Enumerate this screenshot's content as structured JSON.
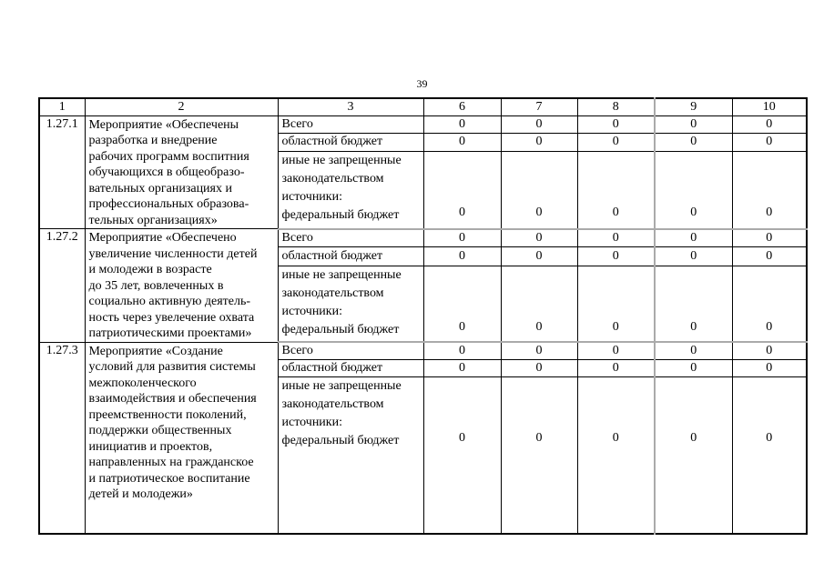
{
  "page": {
    "number": "39"
  },
  "colors": {
    "grid": "#000000",
    "divider": "#aaaaaa"
  },
  "table": {
    "header": [
      "1",
      "2",
      "3",
      "6",
      "7",
      "8",
      "9",
      "10"
    ],
    "divider_before_column": "9",
    "groups": [
      {
        "id": "1.27.1",
        "description": "Мероприятие «Обеспечены\nразработка и внедрение\nрабочих программ воспитния\nобучающихся в общеобразо-\nвательных организациях и\nпрофессиональных образова-\nтельных организациях»",
        "rows": [
          {
            "source": "Всего",
            "values": [
              "0",
              "0",
              "0",
              "0",
              "0"
            ]
          },
          {
            "source": "областной бюджет",
            "values": [
              "0",
              "0",
              "0",
              "0",
              "0"
            ]
          },
          {
            "source": "иные не запрещенные\nзаконодательством\nисточники:\nфедеральный бюджет",
            "values": [
              "0",
              "0",
              "0",
              "0",
              "0"
            ]
          }
        ]
      },
      {
        "id": "1.27.2",
        "description": "Мероприятие «Обеспечено\nувеличение численности детей\nи молодежи в возрасте\nдо 35 лет, вовлеченных в\nсоциально активную деятель-\nность через увелечение охвата\nпатриотическими проектами»",
        "rows": [
          {
            "source": "Всего",
            "values": [
              "0",
              "0",
              "0",
              "0",
              "0"
            ]
          },
          {
            "source": "областной бюджет",
            "values": [
              "0",
              "0",
              "0",
              "0",
              "0"
            ]
          },
          {
            "source": "иные не запрещенные\nзаконодательством\nисточники:\nфедеральный бюджет",
            "values": [
              "0",
              "0",
              "0",
              "0",
              "0"
            ]
          }
        ]
      },
      {
        "id": "1.27.3",
        "description": "Мероприятие «Создание\nусловий для развития системы\nмежпоколенческого\nвзаимодействия и обеспечения\nпреемственности поколений,\nподдержки общественных\nинициатив и проектов,\nнаправленных на гражданское\nи патриотическое воспитание\nдетей и молодежи»",
        "rows": [
          {
            "source": "Всего",
            "values": [
              "0",
              "0",
              "0",
              "0",
              "0"
            ]
          },
          {
            "source": "областной бюджет",
            "values": [
              "0",
              "0",
              "0",
              "0",
              "0"
            ]
          },
          {
            "source": "иные не запрещенные\nзаконодательством\nисточники:\nфедеральный бюджет",
            "values": [
              "0",
              "0",
              "0",
              "0",
              "0"
            ]
          }
        ]
      }
    ]
  }
}
